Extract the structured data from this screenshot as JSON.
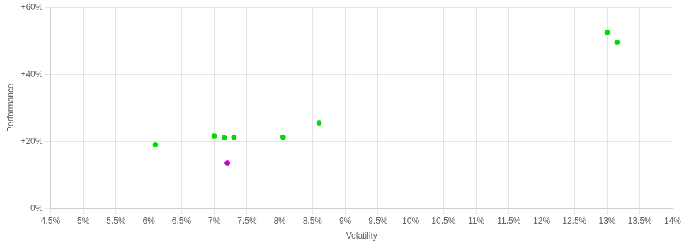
{
  "chart_data": {
    "type": "scatter",
    "xlabel": "Volatility",
    "ylabel": "Performance",
    "series": [
      {
        "color": "#00dd00",
        "x": [
          6.1,
          7.0,
          7.15,
          7.3,
          8.05,
          8.6,
          13.0,
          13.15
        ],
        "values": [
          19.0,
          21.5,
          21.0,
          21.2,
          21.2,
          25.5,
          52.5,
          49.5
        ]
      },
      {
        "color": "#cc00cc",
        "x": [
          7.2
        ],
        "values": [
          13.5
        ]
      }
    ],
    "xlim": [
      4.5,
      14.0
    ],
    "xticks": [
      {
        "value": 4.5,
        "label": "4.5%"
      },
      {
        "value": 5.0,
        "label": "5%"
      },
      {
        "value": 5.5,
        "label": "5.5%"
      },
      {
        "value": 6.0,
        "label": "6%"
      },
      {
        "value": 6.5,
        "label": "6.5%"
      },
      {
        "value": 7.0,
        "label": "7%"
      },
      {
        "value": 7.5,
        "label": "7.5%"
      },
      {
        "value": 8.0,
        "label": "8%"
      },
      {
        "value": 8.5,
        "label": "8.5%"
      },
      {
        "value": 9.0,
        "label": "9%"
      },
      {
        "value": 9.5,
        "label": "9.5%"
      },
      {
        "value": 10.0,
        "label": "10%"
      },
      {
        "value": 10.5,
        "label": "10.5%"
      },
      {
        "value": 11.0,
        "label": "11%"
      },
      {
        "value": 11.5,
        "label": "11.5%"
      },
      {
        "value": 12.0,
        "label": "12%"
      },
      {
        "value": 12.5,
        "label": "12.5%"
      },
      {
        "value": 13.0,
        "label": "13%"
      },
      {
        "value": 13.5,
        "label": "13.5%"
      },
      {
        "value": 14.0,
        "label": "14%"
      }
    ],
    "ylim": [
      0,
      60
    ],
    "yticks": [
      {
        "value": 0,
        "label": "0%"
      },
      {
        "value": 20,
        "label": "+20%"
      },
      {
        "value": 40,
        "label": "+40%"
      },
      {
        "value": 60,
        "label": "+60%"
      }
    ],
    "grid": true
  }
}
